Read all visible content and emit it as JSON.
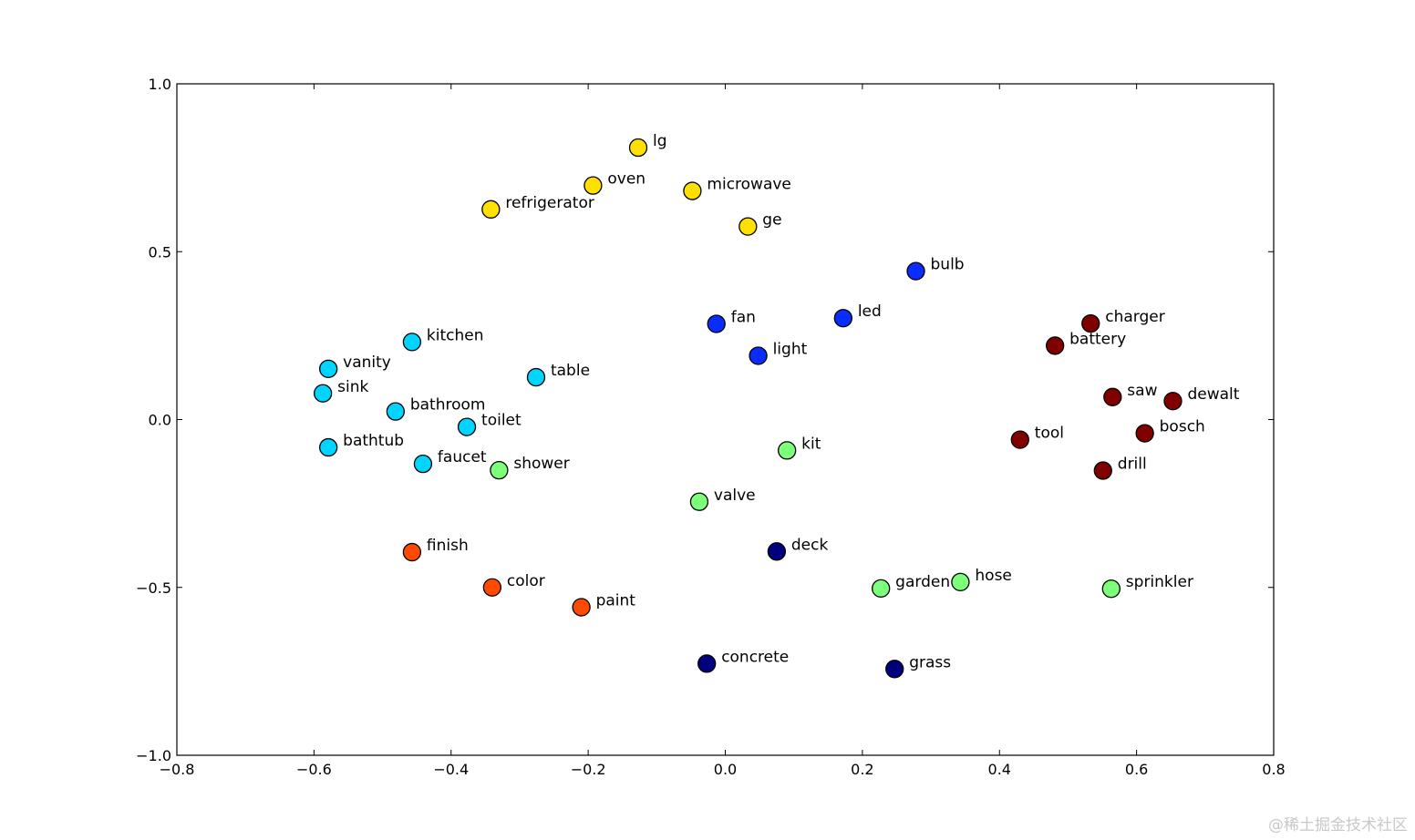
{
  "chart_data": {
    "type": "scatter",
    "xlim": [
      -0.8,
      0.8
    ],
    "ylim": [
      -1.0,
      1.0
    ],
    "x_ticks": [
      -0.8,
      -0.6,
      -0.4,
      -0.2,
      0.0,
      0.2,
      0.4,
      0.6,
      0.8
    ],
    "x_tick_labels": [
      "−0.8",
      "−0.6",
      "−0.4",
      "−0.2",
      "0.0",
      "0.2",
      "0.4",
      "0.6",
      "0.8"
    ],
    "y_ticks": [
      1.0,
      0.5,
      0.0,
      -0.5,
      -1.0
    ],
    "y_tick_labels": [
      "1.0",
      "0.5",
      "0.0",
      "−0.5",
      "−1.0"
    ],
    "grid": false,
    "legend": "none",
    "colors": {
      "yellow": "#ffe000",
      "blue": "#0a2cff",
      "cyan": "#00d4ff",
      "darkred": "#800000",
      "green": "#7dff7a",
      "orange": "#ff4a00",
      "navy": "#00007f"
    },
    "points": [
      {
        "label": "lg",
        "x": -0.127,
        "y": 0.81,
        "color": "#ffe000"
      },
      {
        "label": "oven",
        "x": -0.193,
        "y": 0.697,
        "color": "#ffe000"
      },
      {
        "label": "microwave",
        "x": -0.048,
        "y": 0.681,
        "color": "#ffe000"
      },
      {
        "label": "refrigerator",
        "x": -0.342,
        "y": 0.626,
        "color": "#ffe000"
      },
      {
        "label": "ge",
        "x": 0.033,
        "y": 0.575,
        "color": "#ffe000"
      },
      {
        "label": "bulb",
        "x": 0.278,
        "y": 0.442,
        "color": "#0a2cff"
      },
      {
        "label": "led",
        "x": 0.172,
        "y": 0.302,
        "color": "#0a2cff"
      },
      {
        "label": "fan",
        "x": -0.013,
        "y": 0.285,
        "color": "#0a2cff"
      },
      {
        "label": "light",
        "x": 0.048,
        "y": 0.19,
        "color": "#0a2cff"
      },
      {
        "label": "kitchen",
        "x": -0.457,
        "y": 0.231,
        "color": "#00d4ff"
      },
      {
        "label": "vanity",
        "x": -0.579,
        "y": 0.151,
        "color": "#00d4ff"
      },
      {
        "label": "table",
        "x": -0.276,
        "y": 0.126,
        "color": "#00d4ff"
      },
      {
        "label": "sink",
        "x": -0.587,
        "y": 0.078,
        "color": "#00d4ff"
      },
      {
        "label": "bathroom",
        "x": -0.481,
        "y": 0.024,
        "color": "#00d4ff"
      },
      {
        "label": "toilet",
        "x": -0.377,
        "y": -0.022,
        "color": "#00d4ff"
      },
      {
        "label": "bathtub",
        "x": -0.579,
        "y": -0.083,
        "color": "#00d4ff"
      },
      {
        "label": "faucet",
        "x": -0.441,
        "y": -0.132,
        "color": "#00d4ff"
      },
      {
        "label": "charger",
        "x": 0.533,
        "y": 0.286,
        "color": "#800000"
      },
      {
        "label": "battery",
        "x": 0.481,
        "y": 0.22,
        "color": "#800000"
      },
      {
        "label": "saw",
        "x": 0.565,
        "y": 0.067,
        "color": "#800000"
      },
      {
        "label": "dewalt",
        "x": 0.653,
        "y": 0.055,
        "color": "#800000"
      },
      {
        "label": "bosch",
        "x": 0.612,
        "y": -0.041,
        "color": "#800000"
      },
      {
        "label": "tool",
        "x": 0.43,
        "y": -0.06,
        "color": "#800000"
      },
      {
        "label": "drill",
        "x": 0.551,
        "y": -0.152,
        "color": "#800000"
      },
      {
        "label": "kit",
        "x": 0.09,
        "y": -0.092,
        "color": "#7dff7a"
      },
      {
        "label": "shower",
        "x": -0.33,
        "y": -0.151,
        "color": "#7dff7a"
      },
      {
        "label": "valve",
        "x": -0.038,
        "y": -0.245,
        "color": "#7dff7a"
      },
      {
        "label": "garden",
        "x": 0.227,
        "y": -0.503,
        "color": "#7dff7a"
      },
      {
        "label": "hose",
        "x": 0.343,
        "y": -0.484,
        "color": "#7dff7a"
      },
      {
        "label": "sprinkler",
        "x": 0.563,
        "y": -0.504,
        "color": "#7dff7a"
      },
      {
        "label": "finish",
        "x": -0.457,
        "y": -0.395,
        "color": "#ff4a00"
      },
      {
        "label": "color",
        "x": -0.34,
        "y": -0.5,
        "color": "#ff4a00"
      },
      {
        "label": "paint",
        "x": -0.21,
        "y": -0.559,
        "color": "#ff4a00"
      },
      {
        "label": "deck",
        "x": 0.075,
        "y": -0.393,
        "color": "#00007f"
      },
      {
        "label": "concrete",
        "x": -0.027,
        "y": -0.727,
        "color": "#00007f"
      },
      {
        "label": "grass",
        "x": 0.247,
        "y": -0.743,
        "color": "#00007f"
      }
    ]
  },
  "watermark": "@稀土掘金技术社区"
}
